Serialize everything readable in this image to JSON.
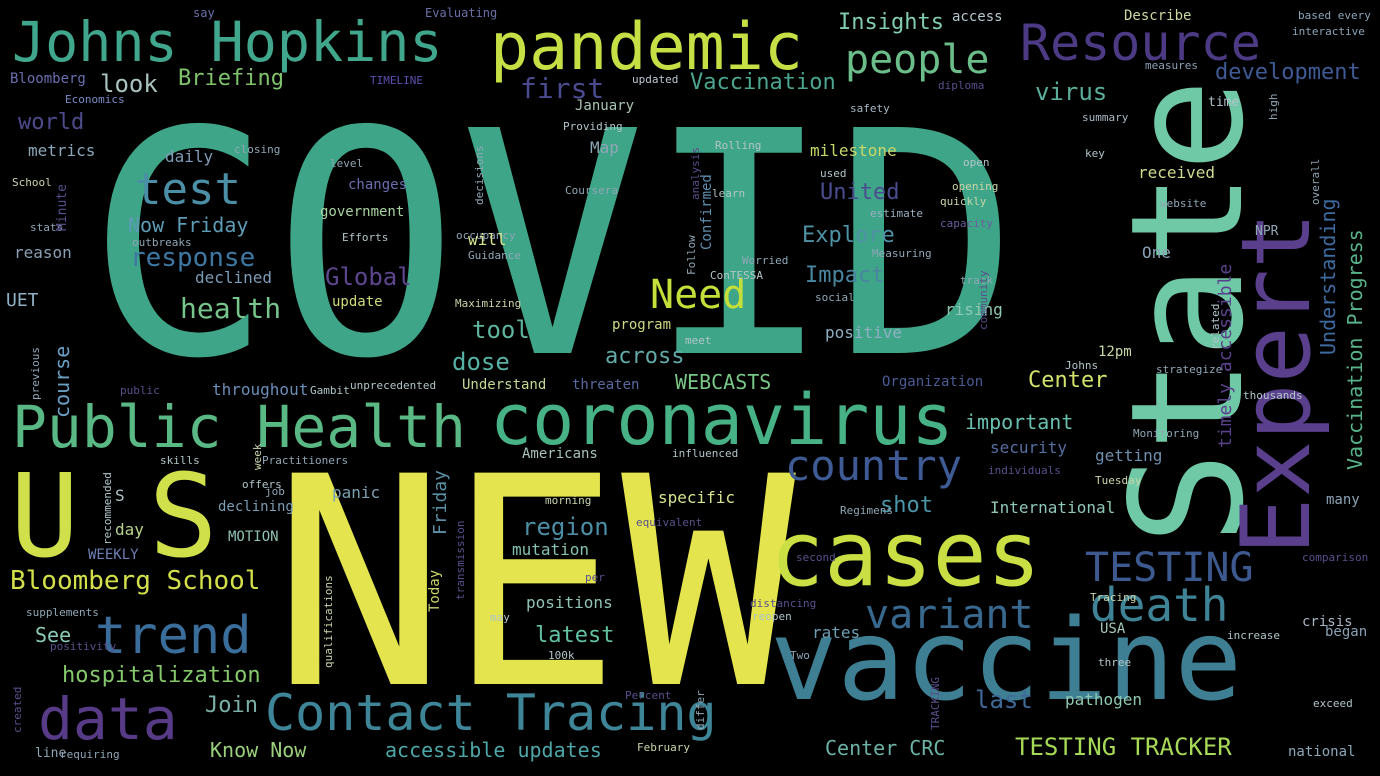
{
  "words": [
    {
      "text": "COVID",
      "color": "#3fa588"
    },
    {
      "text": "NEW",
      "color": "#e3e44e"
    },
    {
      "text": "State",
      "color": "#6fc9a6"
    },
    {
      "text": "Expert",
      "color": "#5a3f8c"
    },
    {
      "text": "vaccine",
      "color": "#3e7f93"
    },
    {
      "text": "U S",
      "color": "#d0e04a"
    },
    {
      "text": "cases",
      "color": "#c9df43"
    },
    {
      "text": "coronavirus",
      "color": "#46b286"
    },
    {
      "text": "Public Health",
      "color": "#59b884"
    },
    {
      "text": "pandemic",
      "color": "#c5df45"
    },
    {
      "text": "Johns Hopkins",
      "color": "#40a68c"
    },
    {
      "text": "Resource",
      "color": "#4c3a85"
    },
    {
      "text": "death",
      "color": "#3f8396"
    },
    {
      "text": "trend",
      "color": "#3b6d9a"
    },
    {
      "text": "data",
      "color": "#573b86"
    },
    {
      "text": "Contact Tracing",
      "color": "#3e8597"
    },
    {
      "text": "country",
      "color": "#3f5b95"
    },
    {
      "text": "variant",
      "color": "#38688d"
    },
    {
      "text": "TESTING",
      "color": "#3c5a8f"
    },
    {
      "text": "test",
      "color": "#4a8fa5"
    },
    {
      "text": "people",
      "color": "#6bbd8a"
    },
    {
      "text": "Need",
      "color": "#c4df3a"
    },
    {
      "text": "response",
      "color": "#3e78a2"
    },
    {
      "text": "Bloomberg School",
      "color": "#d4e049"
    },
    {
      "text": "TESTING TRACKER",
      "color": "#a6d956"
    },
    {
      "text": "hospitalization",
      "color": "#85c96c"
    },
    {
      "text": "first",
      "color": "#4a4a8e"
    },
    {
      "text": "Vaccination",
      "color": "#4ba58f"
    },
    {
      "text": "Briefing",
      "color": "#7fc46b"
    },
    {
      "text": "look",
      "color": "#a9c4c0"
    },
    {
      "text": "development",
      "color": "#3f5a95"
    },
    {
      "text": "virus",
      "color": "#5aae9a"
    },
    {
      "text": "Global",
      "color": "#5d468f"
    },
    {
      "text": "health",
      "color": "#77c58a"
    },
    {
      "text": "Now Friday",
      "color": "#5e9bb5"
    },
    {
      "text": "tool",
      "color": "#5fb49d"
    },
    {
      "text": "dose",
      "color": "#56b2a4"
    },
    {
      "text": "Explore",
      "color": "#4f92a5"
    },
    {
      "text": "Impact",
      "color": "#4a86a0"
    },
    {
      "text": "United",
      "color": "#4a4c8f"
    },
    {
      "text": "region",
      "color": "#4d8ea7"
    },
    {
      "text": "latest",
      "color": "#62c1a4"
    },
    {
      "text": "shot",
      "color": "#4b95a8"
    },
    {
      "text": "last",
      "color": "#3f6b9a"
    },
    {
      "text": "Join",
      "color": "#7ab0a7"
    },
    {
      "text": "See",
      "color": "#8acbb7"
    },
    {
      "text": "Know Now",
      "color": "#9ad07c"
    },
    {
      "text": "accessible updates",
      "color": "#4da6a8"
    },
    {
      "text": "Center CRC",
      "color": "#6cb2a6"
    },
    {
      "text": "world",
      "color": "#4e4b8c"
    },
    {
      "text": "Insights",
      "color": "#82cdb1"
    },
    {
      "text": "important",
      "color": "#6ac0b0"
    },
    {
      "text": "Center",
      "color": "#d3e26a"
    },
    {
      "text": "WEBCASTS",
      "color": "#79c786"
    },
    {
      "text": "across",
      "color": "#62aaa8"
    },
    {
      "text": "course",
      "color": "#6b9fc4"
    },
    {
      "text": "Understanding",
      "color": "#3e6ba0"
    },
    {
      "text": "Vaccination Progress",
      "color": "#58b289"
    },
    {
      "text": "timely accessible",
      "color": "#5a418c"
    },
    {
      "text": "positions",
      "color": "#91c3b6"
    },
    {
      "text": "mutation",
      "color": "#85c1b0"
    },
    {
      "text": "specific",
      "color": "#d8e38f"
    },
    {
      "text": "Friday",
      "color": "#5a8fa5"
    },
    {
      "text": "Today",
      "color": "#c8d56a"
    },
    {
      "text": "International",
      "color": "#8fc7b8"
    },
    {
      "text": "getting",
      "color": "#6e8fae"
    },
    {
      "text": "security",
      "color": "#556ea0"
    },
    {
      "text": "panic",
      "color": "#7aa0b0"
    },
    {
      "text": "pathogen",
      "color": "#8fc8b0"
    },
    {
      "text": "rates",
      "color": "#6e9fb5"
    },
    {
      "text": "milestone",
      "color": "#c8d76a"
    },
    {
      "text": "rising",
      "color": "#8fc7b5"
    },
    {
      "text": "positive",
      "color": "#8fb0c3"
    },
    {
      "text": "received",
      "color": "#cfd98f"
    },
    {
      "text": "government",
      "color": "#a8d2a0"
    },
    {
      "text": "changes",
      "color": "#6b6fb0"
    },
    {
      "text": "declined",
      "color": "#7c9bb8"
    },
    {
      "text": "update",
      "color": "#d0db78"
    },
    {
      "text": "program",
      "color": "#cfd985"
    },
    {
      "text": "Understand",
      "color": "#c2d892"
    },
    {
      "text": "throughout",
      "color": "#6c8db8"
    },
    {
      "text": "threaten",
      "color": "#5a6aa0"
    },
    {
      "text": "Organization",
      "color": "#4a5c95"
    },
    {
      "text": "WEEKLY",
      "color": "#6c7fb5"
    },
    {
      "text": "MOTION",
      "color": "#8fc2b5"
    },
    {
      "text": "day",
      "color": "#b8d38f"
    },
    {
      "text": "declining",
      "color": "#7a9cb5"
    },
    {
      "text": "reason",
      "color": "#8ba0b5"
    },
    {
      "text": "metrics",
      "color": "#8aa7b9"
    },
    {
      "text": "daily",
      "color": "#7f9bb7"
    },
    {
      "text": "UET",
      "color": "#8fb0c5"
    },
    {
      "text": "Map",
      "color": "#8fa6b5"
    },
    {
      "text": "January",
      "color": "#a9c4b5"
    },
    {
      "text": "Confirmed",
      "color": "#5d8fb0"
    },
    {
      "text": "One",
      "color": "#8aa1b5"
    },
    {
      "text": "12pm",
      "color": "#c6d6a8"
    },
    {
      "text": "many",
      "color": "#8aa2b5"
    },
    {
      "text": "began",
      "color": "#8aa1b5"
    },
    {
      "text": "USA",
      "color": "#a5c8b8"
    },
    {
      "text": "crisis",
      "color": "#a8b5c5"
    },
    {
      "text": "national",
      "color": "#8ba6b8"
    },
    {
      "text": "Americans",
      "color": "#a6c2b8"
    },
    {
      "text": "Describe",
      "color": "#c9d7a0"
    },
    {
      "text": "access",
      "color": "#b3c8d0"
    },
    {
      "text": "Bloomberg",
      "color": "#6a6fb0"
    },
    {
      "text": "Economics",
      "color": "#7a8cc5"
    },
    {
      "text": "TIMELINE",
      "color": "#5d4fb0"
    },
    {
      "text": "say",
      "color": "#6a6fa8"
    },
    {
      "text": "Evaluating",
      "color": "#6a6fa8"
    },
    {
      "text": "based every",
      "color": "#8ca5b8"
    },
    {
      "text": "interactive",
      "color": "#8ca5b8"
    },
    {
      "text": "measures",
      "color": "#8ca0b5"
    },
    {
      "text": "updated",
      "color": "#b8c8d5"
    },
    {
      "text": "diploma",
      "color": "#5a4f8c"
    },
    {
      "text": "safety",
      "color": "#a9b8c5"
    },
    {
      "text": "summary",
      "color": "#a9b8c5"
    },
    {
      "text": "time",
      "color": "#b0c5c8"
    },
    {
      "text": "key",
      "color": "#b0c5c8"
    },
    {
      "text": "open",
      "color": "#b0c5c8"
    },
    {
      "text": "opening",
      "color": "#c8d5a8"
    },
    {
      "text": "quickly",
      "color": "#c8d5a8"
    },
    {
      "text": "website",
      "color": "#8fa6b5"
    },
    {
      "text": "NPR",
      "color": "#8fa6b5"
    },
    {
      "text": "Rolling",
      "color": "#b0c5c8"
    },
    {
      "text": "used",
      "color": "#b0c5c8"
    },
    {
      "text": "estimate",
      "color": "#9ab0c0"
    },
    {
      "text": "capacity",
      "color": "#6a5f9c"
    },
    {
      "text": "learn",
      "color": "#b0c5c8"
    },
    {
      "text": "Providing",
      "color": "#b0c5c8"
    },
    {
      "text": "closing",
      "color": "#8fa6b5"
    },
    {
      "text": "level",
      "color": "#8fa6b5"
    },
    {
      "text": "occupancy",
      "color": "#8fa6b5"
    },
    {
      "text": "Efforts",
      "color": "#b0c5c8"
    },
    {
      "text": "outbreaks",
      "color": "#8fa6b5"
    },
    {
      "text": "School",
      "color": "#c8d5a8"
    },
    {
      "text": "stats",
      "color": "#8fa6b5"
    },
    {
      "text": "Guidance",
      "color": "#8fa6b5"
    },
    {
      "text": "Worried",
      "color": "#8fa6b5"
    },
    {
      "text": "Measuring",
      "color": "#8fa6b5"
    },
    {
      "text": "ConTESSA",
      "color": "#b0c5c8"
    },
    {
      "text": "social",
      "color": "#8fa6b5"
    },
    {
      "text": "track",
      "color": "#8fa6b5"
    },
    {
      "text": "Maximizing",
      "color": "#c8d5a8"
    },
    {
      "text": "meet",
      "color": "#b0c5c8"
    },
    {
      "text": "Gambit",
      "color": "#b0c5c8"
    },
    {
      "text": "unprecedented",
      "color": "#b0c5c8"
    },
    {
      "text": "public",
      "color": "#5a4f8c"
    },
    {
      "text": "Johns",
      "color": "#b0c5c8"
    },
    {
      "text": "strategize",
      "color": "#8fa6b5"
    },
    {
      "text": "thousands",
      "color": "#b0c5c8"
    },
    {
      "text": "Monitoring",
      "color": "#8fa6b5"
    },
    {
      "text": "individuals",
      "color": "#5a4f8c"
    },
    {
      "text": "Tuesday",
      "color": "#c8d5a8"
    },
    {
      "text": "influenced",
      "color": "#b0c5c8"
    },
    {
      "text": "morning",
      "color": "#c8d5a8"
    },
    {
      "text": "skills",
      "color": "#b0c5c8"
    },
    {
      "text": "week",
      "color": "#c8d5a8"
    },
    {
      "text": "Practitioners",
      "color": "#8fa6b5"
    },
    {
      "text": "offers",
      "color": "#b0c5c8"
    },
    {
      "text": "job",
      "color": "#8fa6b5"
    },
    {
      "text": "recommended",
      "color": "#b0c5c8"
    },
    {
      "text": "Regimens",
      "color": "#8fa6b5"
    },
    {
      "text": "equivalent",
      "color": "#5a4f8c"
    },
    {
      "text": "second",
      "color": "#5a4f8c"
    },
    {
      "text": "comparison",
      "color": "#5a4f8c"
    },
    {
      "text": "distancing",
      "color": "#5a4f8c"
    },
    {
      "text": "reopen",
      "color": "#b0c5c8"
    },
    {
      "text": "per",
      "color": "#5a4f8c"
    },
    {
      "text": "may",
      "color": "#b0c5c8"
    },
    {
      "text": "supplements",
      "color": "#8fa6b5"
    },
    {
      "text": "positivity",
      "color": "#5a4f8c"
    },
    {
      "text": "Tracing",
      "color": "#c8d5a8"
    },
    {
      "text": "increase",
      "color": "#b0c5c8"
    },
    {
      "text": "Two",
      "color": "#8fa6b5"
    },
    {
      "text": "three",
      "color": "#b0c5c8"
    },
    {
      "text": "100k",
      "color": "#b0c5c8"
    },
    {
      "text": "Percent",
      "color": "#5a4f8c"
    },
    {
      "text": "exceed",
      "color": "#b0c5c8"
    },
    {
      "text": "February",
      "color": "#c8d5a8"
    },
    {
      "text": "line",
      "color": "#8fa6b5"
    },
    {
      "text": "requiring",
      "color": "#8fa6b5"
    },
    {
      "text": "Minute",
      "color": "#5a4f8c"
    },
    {
      "text": "previous",
      "color": "#8fa6b5"
    },
    {
      "text": "created",
      "color": "#5a4f8c"
    },
    {
      "text": "qualifications",
      "color": "#c8d5a8"
    },
    {
      "text": "transmission",
      "color": "#5a4f8c"
    },
    {
      "text": "differ",
      "color": "#8fa6b5"
    },
    {
      "text": "TRACKING",
      "color": "#5a4f8c"
    },
    {
      "text": "community",
      "color": "#5a4f8c"
    },
    {
      "text": "related",
      "color": "#b0c5c8"
    },
    {
      "text": "high",
      "color": "#8fa6b5"
    },
    {
      "text": "overall",
      "color": "#8fa6b5"
    },
    {
      "text": "analysis",
      "color": "#5a4f8c"
    },
    {
      "text": "decisions",
      "color": "#8fa6b5"
    },
    {
      "text": "Follow",
      "color": "#8fa6b5"
    },
    {
      "text": "will",
      "color": "#d8e38f"
    },
    {
      "text": "Coursera",
      "color": "#8fa6b5"
    },
    {
      "text": "S",
      "color": "#b0c5c8"
    }
  ]
}
